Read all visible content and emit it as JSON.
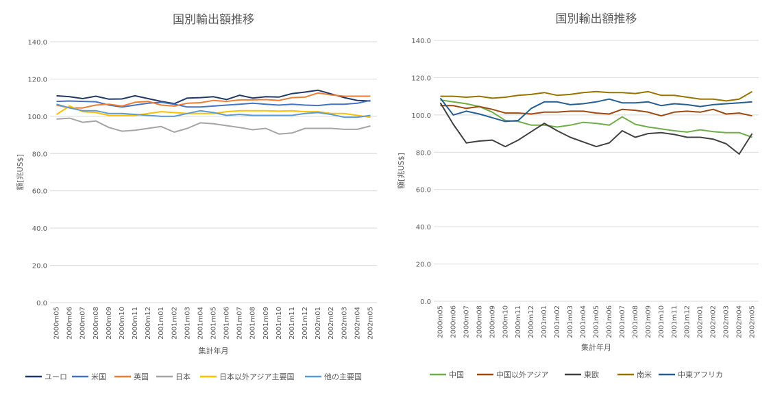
{
  "chart_data": [
    {
      "type": "line",
      "title": "国別輸出額推移",
      "xlabel": "集計年月",
      "ylabel": "額[兆US$]",
      "ylim": [
        0,
        140
      ],
      "yticks": [
        "0.0",
        "20.0",
        "40.0",
        "60.0",
        "80.0",
        "100.0",
        "120.0",
        "140.0"
      ],
      "grid": true,
      "legend": "bottom",
      "categories": [
        "2000m05",
        "2000m06",
        "2000m07",
        "2000m08",
        "2000m09",
        "2000m10",
        "2000m11",
        "2000m12",
        "2001m01",
        "2001m02",
        "2001m03",
        "2001m04",
        "2001m05",
        "2001m06",
        "2001m07",
        "2001m08",
        "2001m09",
        "2001m10",
        "2001m11",
        "2001m12",
        "2002m01",
        "2002m02",
        "2002m03",
        "2002m04",
        "2002m05"
      ],
      "series": [
        {
          "name": "ユーロ",
          "color": "#1f3864",
          "values": [
            111.0,
            110.5,
            109.5,
            110.8,
            109.2,
            109.3,
            111.0,
            109.5,
            108.0,
            106.8,
            109.8,
            110.0,
            110.5,
            109.0,
            111.3,
            109.8,
            110.5,
            110.3,
            112.2,
            113.0,
            114.0,
            112.0,
            110.0,
            108.5,
            108.2
          ]
        },
        {
          "name": "米国",
          "color": "#4472c4",
          "values": [
            108.0,
            108.2,
            108.0,
            107.8,
            106.0,
            105.0,
            106.0,
            107.0,
            107.5,
            106.5,
            105.0,
            105.0,
            105.5,
            106.0,
            106.5,
            107.0,
            106.5,
            106.0,
            106.5,
            106.0,
            105.8,
            106.5,
            106.5,
            107.0,
            108.5
          ]
        },
        {
          "name": "英国",
          "color": "#ed7d31",
          "values": [
            106.0,
            104.5,
            104.5,
            106.0,
            106.5,
            105.5,
            107.5,
            108.0,
            106.0,
            105.5,
            107.0,
            107.3,
            108.5,
            108.0,
            108.8,
            108.8,
            109.0,
            108.5,
            110.0,
            110.3,
            112.5,
            111.5,
            110.8,
            110.8,
            110.8
          ]
        },
        {
          "name": "日本",
          "color": "#a5a5a5",
          "values": [
            98.5,
            99.0,
            96.8,
            97.5,
            94.0,
            92.0,
            92.5,
            93.5,
            94.5,
            91.5,
            93.5,
            96.5,
            96.0,
            95.0,
            94.0,
            92.8,
            93.5,
            90.5,
            91.0,
            93.5,
            93.5,
            93.5,
            93.0,
            93.0,
            94.8
          ]
        },
        {
          "name": "日本以外アジア主要国",
          "color": "#ffc000",
          "values": [
            101.0,
            105.5,
            102.5,
            102.0,
            100.5,
            100.5,
            100.5,
            101.5,
            102.5,
            102.0,
            101.5,
            101.5,
            101.5,
            102.5,
            103.0,
            103.0,
            103.0,
            102.8,
            103.0,
            102.5,
            102.5,
            101.5,
            101.5,
            100.5,
            99.5
          ]
        },
        {
          "name": "他の主要国",
          "color": "#5b9bd5",
          "values": [
            106.5,
            104.5,
            103.0,
            103.0,
            101.5,
            101.5,
            101.0,
            100.5,
            100.0,
            100.0,
            101.5,
            103.0,
            102.0,
            100.5,
            101.0,
            100.5,
            100.5,
            100.5,
            100.5,
            101.5,
            102.0,
            101.0,
            99.5,
            99.5,
            100.5
          ]
        }
      ]
    },
    {
      "type": "line",
      "title": "国別輸出額推移",
      "xlabel": "集計年月",
      "ylabel": "額[兆US$]",
      "ylim": [
        0,
        140
      ],
      "yticks": [
        "0.0",
        "20.0",
        "40.0",
        "60.0",
        "80.0",
        "100.0",
        "120.0",
        "140.0"
      ],
      "grid": true,
      "legend": "bottom",
      "categories": [
        "2000m05",
        "2000m06",
        "2000m07",
        "2000m08",
        "2000m09",
        "2000m10",
        "2000m11",
        "2000m12",
        "2001m01",
        "2001m02",
        "2001m03",
        "2001m04",
        "2001m05",
        "2001m06",
        "2001m07",
        "2001m08",
        "2001m09",
        "2001m10",
        "2001m11",
        "2001m12",
        "2002m01",
        "2002m02",
        "2002m03",
        "2002m04",
        "2002m05"
      ],
      "series": [
        {
          "name": "中国",
          "color": "#70ad47",
          "values": [
            108.0,
            107.0,
            106.0,
            104.5,
            101.5,
            97.0,
            96.5,
            94.5,
            94.5,
            93.5,
            94.5,
            96.0,
            95.5,
            94.5,
            99.0,
            95.0,
            93.5,
            92.5,
            91.5,
            90.8,
            92.0,
            91.0,
            90.5,
            90.5,
            88.0
          ]
        },
        {
          "name": "中国以外アジア",
          "color": "#9e480e",
          "values": [
            105.0,
            105.0,
            103.5,
            104.5,
            103.0,
            101.0,
            101.0,
            100.5,
            101.5,
            101.5,
            102.0,
            102.0,
            101.0,
            100.5,
            103.0,
            102.5,
            101.5,
            99.5,
            101.5,
            102.0,
            101.5,
            103.0,
            100.5,
            101.0,
            99.5
          ]
        },
        {
          "name": "東欧",
          "color": "#404040",
          "values": [
            106.5,
            95.0,
            85.0,
            86.0,
            86.5,
            83.0,
            86.5,
            91.0,
            95.5,
            91.5,
            88.0,
            85.5,
            83.0,
            85.0,
            91.5,
            88.0,
            90.0,
            90.5,
            89.5,
            88.0,
            88.0,
            87.0,
            84.5,
            79.0,
            90.0
          ]
        },
        {
          "name": "南米",
          "color": "#997300",
          "values": [
            110.0,
            110.0,
            109.5,
            110.0,
            109.0,
            109.5,
            110.5,
            111.0,
            112.0,
            110.5,
            111.0,
            112.0,
            112.5,
            112.0,
            112.0,
            111.5,
            112.5,
            110.5,
            110.5,
            109.5,
            108.5,
            108.5,
            107.5,
            108.5,
            112.5
          ]
        },
        {
          "name": "中東アフリカ",
          "color": "#255e91",
          "values": [
            109.0,
            100.0,
            102.0,
            100.5,
            98.5,
            96.5,
            97.0,
            103.5,
            107.0,
            107.0,
            105.5,
            106.0,
            107.0,
            108.5,
            106.5,
            106.5,
            107.0,
            105.0,
            106.0,
            105.5,
            104.5,
            105.5,
            106.0,
            106.5,
            107.0
          ]
        }
      ]
    }
  ]
}
